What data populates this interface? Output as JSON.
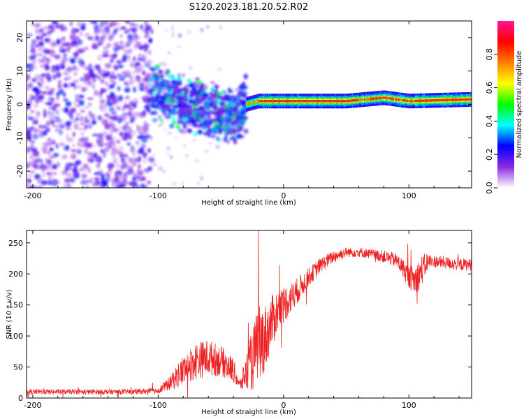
{
  "figure_title": "S120.2023.181.20.52.R02",
  "colormap_stops": [
    "#ffffff",
    "#8a2be2",
    "#0000ff",
    "#00ffff",
    "#00ff00",
    "#ffff00",
    "#ff7f00",
    "#ff0000",
    "#ff1493"
  ],
  "colorbar": {
    "label": "Normalized spectral amplitude",
    "ticks": [
      "0.0",
      "0.2",
      "0.4",
      "0.6",
      "0.8"
    ],
    "range": [
      0,
      1.0
    ]
  },
  "chart_data": [
    {
      "type": "heatmap",
      "title": "",
      "xlabel": "Height of straight line (km)",
      "ylabel": "Frequency (Hz)",
      "xlim": [
        -205,
        150
      ],
      "ylim": [
        -25,
        25
      ],
      "x_ticks": [
        -200,
        -100,
        0,
        100
      ],
      "y_ticks": [
        -20,
        -10,
        0,
        10,
        20
      ],
      "description_of_values": "Normalized spectral amplitude vs height and frequency",
      "regions": [
        {
          "x_range": [
            -205,
            -105
          ],
          "freq_range": [
            -25,
            25
          ],
          "amplitude": 0.1
        },
        {
          "x_range": [
            -105,
            -30
          ],
          "freq_range": [
            -14,
            10
          ],
          "amplitude": 0.2
        },
        {
          "x_range": [
            -30,
            150
          ],
          "freq_center": 1.0,
          "freq_halfwidth": 1.5,
          "amplitude": 0.95
        }
      ],
      "ridge": [
        {
          "x": -100,
          "f": 4
        },
        {
          "x": -80,
          "f": 0
        },
        {
          "x": -60,
          "f": -1
        },
        {
          "x": -40,
          "f": -4
        },
        {
          "x": -30,
          "f": 0
        },
        {
          "x": -20,
          "f": 1
        },
        {
          "x": 0,
          "f": 1
        },
        {
          "x": 50,
          "f": 1
        },
        {
          "x": 80,
          "f": 2
        },
        {
          "x": 100,
          "f": 1
        },
        {
          "x": 150,
          "f": 1.5
        }
      ]
    },
    {
      "type": "line",
      "title": "",
      "xlabel": "Height of straight line (km)",
      "ylabel": "SNR (10 * v/v)",
      "xlim": [
        -205,
        150
      ],
      "ylim": [
        0,
        270
      ],
      "x_ticks": [
        -200,
        -100,
        0,
        100
      ],
      "y_ticks": [
        0,
        50,
        100,
        150,
        200,
        250
      ],
      "series": [
        {
          "color": "#ee2222",
          "x": [
            -205,
            -180,
            -150,
            -120,
            -100,
            -90,
            -80,
            -70,
            -60,
            -50,
            -40,
            -35,
            -30,
            -25,
            -20,
            -15,
            -10,
            -5,
            0,
            10,
            20,
            30,
            40,
            50,
            60,
            70,
            80,
            90,
            95,
            100,
            105,
            110,
            115,
            120,
            130,
            140,
            150
          ],
          "values": [
            10,
            10,
            10,
            10,
            12,
            25,
            45,
            60,
            65,
            60,
            45,
            20,
            40,
            60,
            90,
            95,
            120,
            140,
            150,
            170,
            195,
            215,
            228,
            235,
            235,
            232,
            228,
            222,
            210,
            195,
            190,
            205,
            220,
            220,
            218,
            215,
            215
          ],
          "noise": [
            4,
            4,
            4,
            4,
            5,
            12,
            25,
            30,
            30,
            25,
            20,
            8,
            30,
            50,
            60,
            55,
            45,
            35,
            30,
            22,
            15,
            12,
            10,
            8,
            8,
            8,
            10,
            12,
            15,
            18,
            25,
            25,
            15,
            10,
            10,
            10,
            10
          ]
        }
      ]
    }
  ]
}
